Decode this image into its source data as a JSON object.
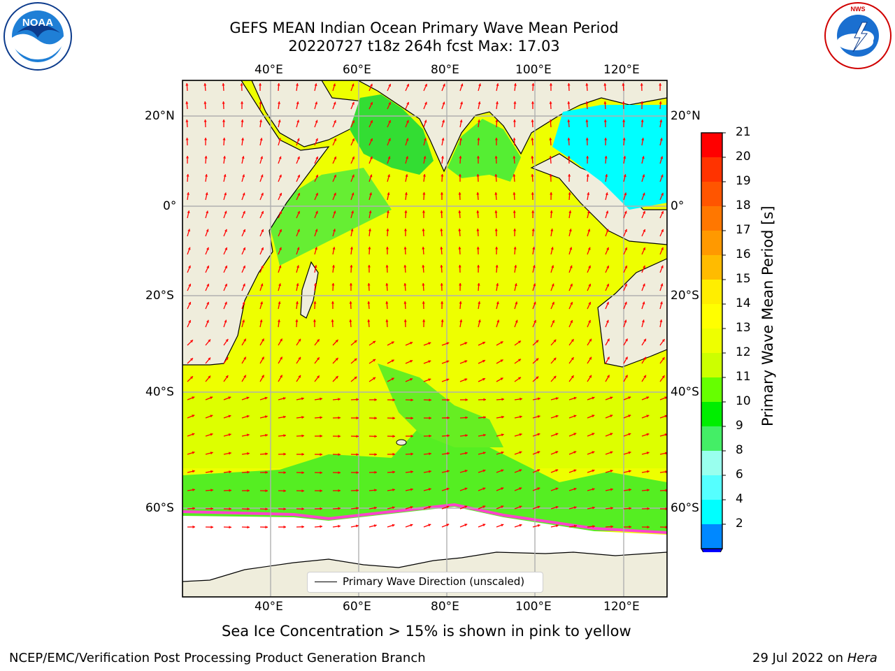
{
  "title": {
    "line1": "GEFS MEAN Indian Ocean Primary Wave Mean Period",
    "line2": "20220727 t18z 264h fcst   Max: 17.03"
  },
  "map": {
    "lon_labels": [
      "40°E",
      "60°E",
      "80°E",
      "100°E",
      "120°E"
    ],
    "lat_labels_left": [
      "20°N",
      "0°",
      "20°S",
      "40°S",
      "60°S"
    ],
    "lat_labels_right": [
      "20°N",
      "0°",
      "20°S",
      "40°S",
      "60°S"
    ],
    "legend_label": "Primary Wave Direction (unscaled)",
    "colors": {
      "land": "#efeddc",
      "ice_free_white": "#ffffff",
      "arrows": "#ff0000",
      "grid": "#b0b0b0"
    }
  },
  "colorbar": {
    "label": "Primary Wave Mean Period [s]",
    "ticks": [
      "21",
      "20",
      "19",
      "18",
      "17",
      "16",
      "15",
      "14",
      "13",
      "12",
      "11",
      "10",
      "9",
      "8",
      "6",
      "4",
      "2"
    ],
    "colors": [
      "#ff0000",
      "#ff3300",
      "#ff5500",
      "#ff7700",
      "#ff9900",
      "#ffbb00",
      "#ffee00",
      "#ffff00",
      "#eeff00",
      "#ccff00",
      "#66ff00",
      "#00ee00",
      "#44ee66",
      "#99ffee",
      "#55ffff",
      "#00ffff",
      "#0088ff"
    ],
    "extend_color": "#0000ff"
  },
  "caption": "Sea Ice Concentration > 15% is shown in pink to yellow",
  "footer": {
    "left": "NCEP/EMC/Verification Post Processing Product Generation Branch",
    "right_date": "29 Jul 2022 on ",
    "right_host": "Hera"
  },
  "logos": {
    "noaa": "NOAA",
    "nws": "NATIONAL WEATHER SERVICE"
  }
}
